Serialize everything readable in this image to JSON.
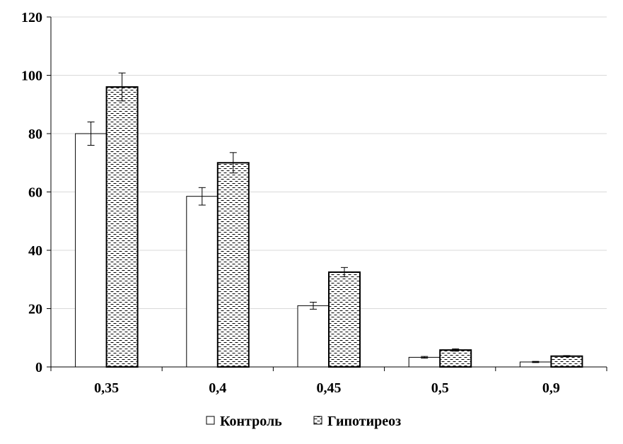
{
  "chart_data": {
    "type": "bar",
    "title": "",
    "xlabel": "",
    "ylabel": "",
    "categories": [
      "0,35",
      "0,4",
      "0,45",
      "0,5",
      "0,9"
    ],
    "ylim": [
      0,
      120
    ],
    "yticks": [
      0,
      20,
      40,
      60,
      80,
      100,
      120
    ],
    "grid": true,
    "legend_position": "bottom",
    "series": [
      {
        "name": "Контроль",
        "values": [
          80,
          58.5,
          21,
          3.3,
          1.7
        ],
        "errors": [
          4,
          3,
          1.2,
          0.3,
          0.2
        ],
        "fill": "white"
      },
      {
        "name": "Гипотиреоз",
        "values": [
          96,
          70,
          32.5,
          5.8,
          3.7
        ],
        "errors": [
          4.8,
          3.5,
          1.6,
          0.4,
          0.2
        ],
        "fill": "dashed-pattern"
      }
    ]
  }
}
